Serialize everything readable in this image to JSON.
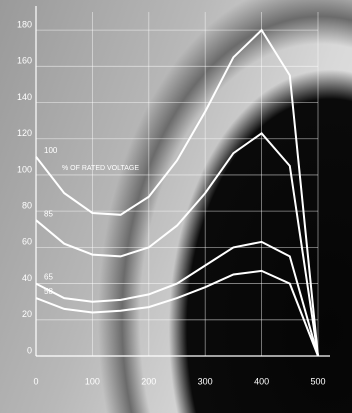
{
  "chart_data": {
    "type": "line",
    "annotation": "% OF RATED VOLTAGE",
    "x": [
      0,
      50,
      100,
      150,
      200,
      250,
      300,
      350,
      400,
      450,
      500
    ],
    "series": [
      {
        "name": "100",
        "color": "#ffffff",
        "values": [
          110,
          90,
          79,
          78,
          88,
          108,
          135,
          165,
          180,
          155,
          0
        ]
      },
      {
        "name": "85",
        "color": "#ffffff",
        "values": [
          75,
          62,
          56,
          55,
          60,
          72,
          90,
          112,
          123,
          105,
          0
        ]
      },
      {
        "name": "65",
        "color": "#ffffff",
        "values": [
          40,
          32,
          30,
          31,
          34,
          40,
          50,
          60,
          63,
          55,
          0
        ]
      },
      {
        "name": "58",
        "color": "#ffffff",
        "values": [
          32,
          26,
          24,
          25,
          27,
          32,
          38,
          45,
          47,
          40,
          0
        ]
      }
    ],
    "xlim": [
      0,
      500
    ],
    "xticks": [
      0,
      100,
      200,
      300,
      400,
      500
    ],
    "ylim": [
      0,
      190
    ],
    "yticks": [
      0,
      20,
      40,
      60,
      80,
      100,
      120,
      140,
      160,
      180
    ],
    "grid": true
  }
}
